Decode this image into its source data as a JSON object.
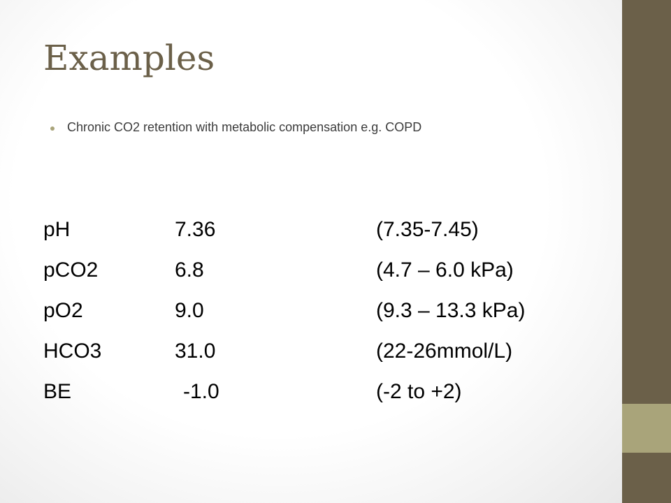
{
  "slide": {
    "title": "Examples",
    "bullet": "Chronic CO2 retention with metabolic compensation e.g. COPD",
    "rows": [
      {
        "name": "pH",
        "value": "7.36",
        "range": "(7.35-7.45)"
      },
      {
        "name": "pCO2",
        "value": "6.8",
        "range": "(4.7 – 6.0 kPa)"
      },
      {
        "name": "pO2",
        "value": "9.0",
        "range": "(9.3 – 13.3 kPa)"
      },
      {
        "name": "HCO3",
        "value": "31.0",
        "range": "(22-26mmol/L)"
      },
      {
        "name": "BE",
        "value": "-1.0",
        "range": "(-2 to +2)"
      }
    ]
  },
  "colors": {
    "accent": "#6b6049",
    "accent_light": "#a9a47a",
    "text": "#000000"
  }
}
